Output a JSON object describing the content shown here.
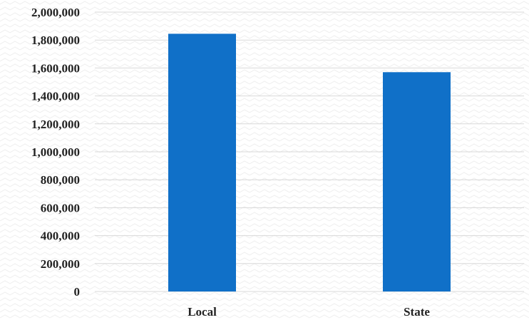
{
  "chart_data": {
    "type": "bar",
    "categories": [
      "Local",
      "State"
    ],
    "values": [
      1845000,
      1570000
    ],
    "title": "",
    "xlabel": "",
    "ylabel": "",
    "ylim": [
      0,
      2000000
    ],
    "yticks": [
      0,
      200000,
      400000,
      600000,
      800000,
      1000000,
      1200000,
      1400000,
      1600000,
      1800000,
      2000000
    ],
    "ytick_labels": [
      "0",
      "200,000",
      "400,000",
      "600,000",
      "800,000",
      "1,000,000",
      "1,200,000",
      "1,400,000",
      "1,600,000",
      "1,800,000",
      "2,000,000"
    ],
    "grid": true,
    "legend": "none",
    "colors": {
      "bar": "#1070C8",
      "grid": "#D9D9D9",
      "background_pattern": "#EEEEEE",
      "text": "#222222"
    }
  }
}
